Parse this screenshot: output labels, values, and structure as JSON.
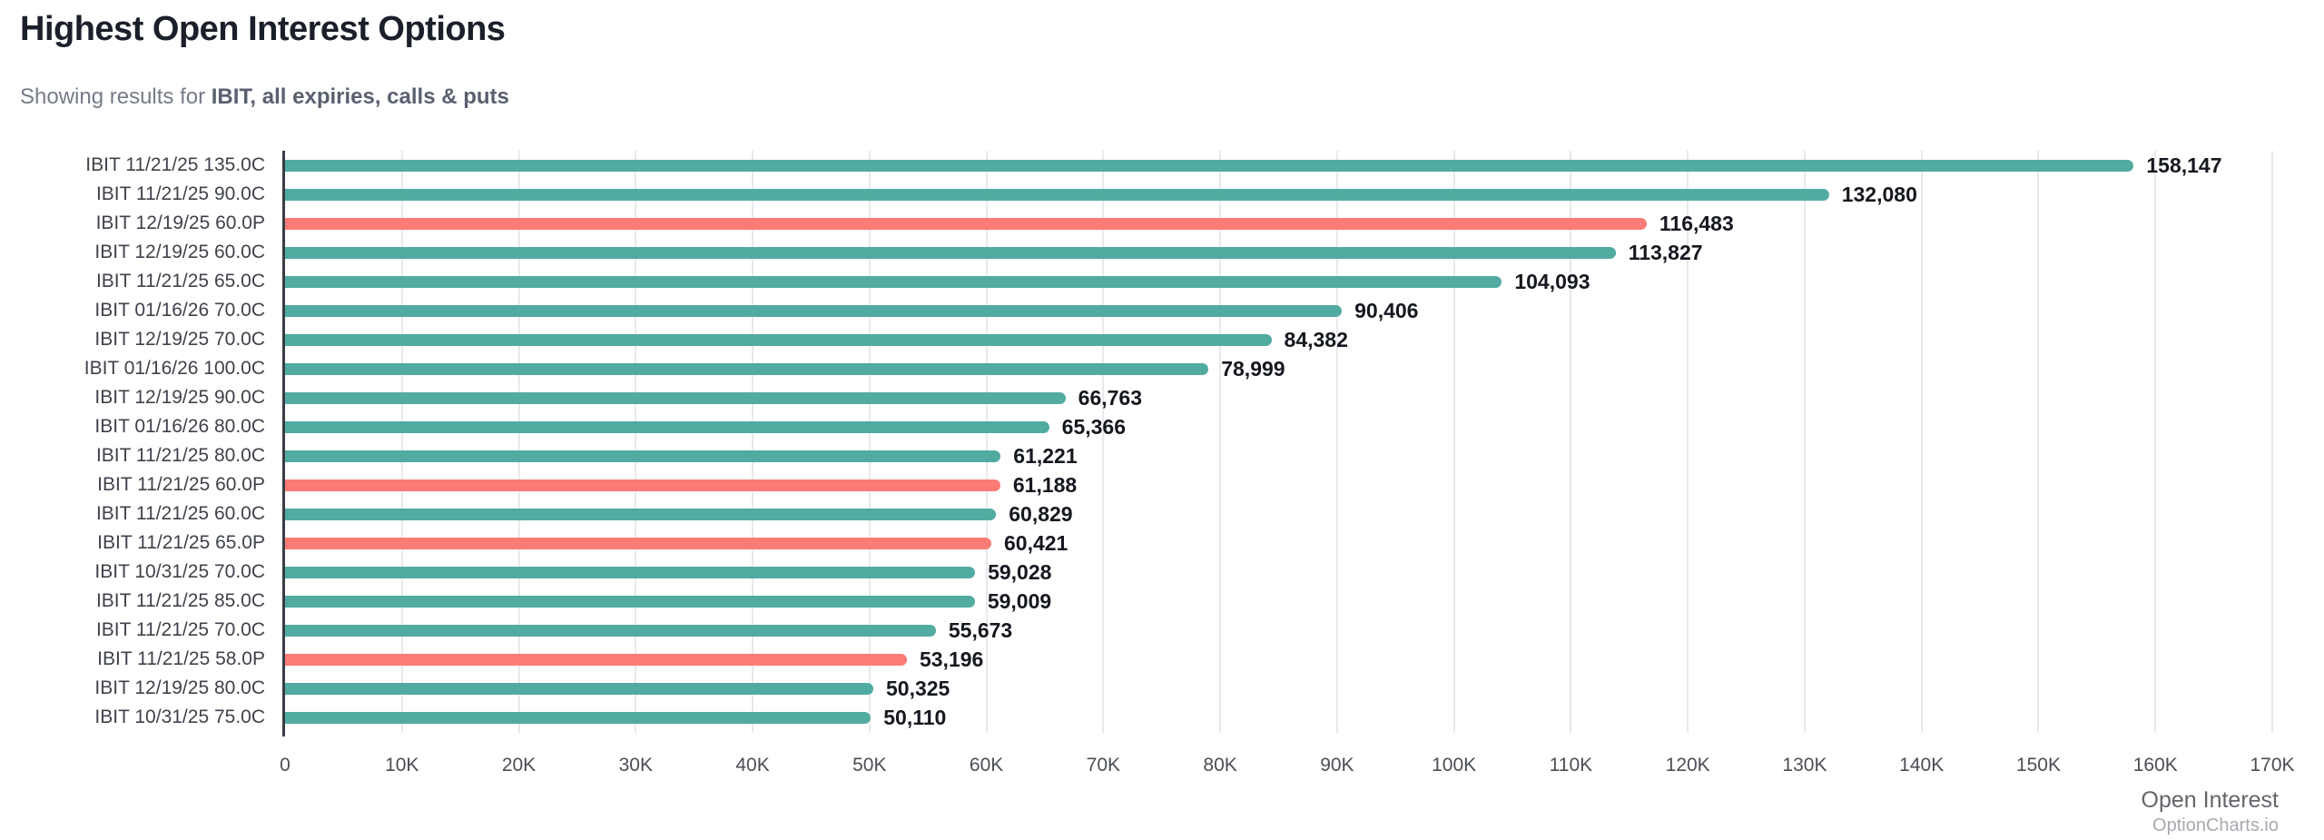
{
  "page": {
    "title": "Highest Open Interest Options",
    "subtitle_prefix": "Showing results for ",
    "subtitle_bold": "IBIT, all expiries, calls & puts",
    "brand": "OptionCharts.io"
  },
  "colors": {
    "call_bar": "#52ABA1",
    "put_bar": "#FB7B76",
    "grid": "#E9E9EC",
    "axis": "#3A3D44",
    "value_text": "#15181F",
    "row_label_text": "#3F424B"
  },
  "chart_data": {
    "type": "bar",
    "orientation": "horizontal",
    "title": "Highest Open Interest Options",
    "xlabel": "Open Interest",
    "ylabel": "",
    "xlim": [
      0,
      170000
    ],
    "x_tick_step": 10000,
    "x_tick_labels": [
      "0",
      "10K",
      "20K",
      "30K",
      "40K",
      "50K",
      "60K",
      "70K",
      "80K",
      "90K",
      "100K",
      "110K",
      "120K",
      "130K",
      "140K",
      "150K",
      "160K",
      "170K"
    ],
    "grid": true,
    "legend_position": "none",
    "bars": [
      {
        "label": "IBIT 11/21/25 135.0C",
        "value": 158147,
        "value_label": "158,147",
        "type": "call"
      },
      {
        "label": "IBIT 11/21/25 90.0C",
        "value": 132080,
        "value_label": "132,080",
        "type": "call"
      },
      {
        "label": "IBIT 12/19/25 60.0P",
        "value": 116483,
        "value_label": "116,483",
        "type": "put"
      },
      {
        "label": "IBIT 12/19/25 60.0C",
        "value": 113827,
        "value_label": "113,827",
        "type": "call"
      },
      {
        "label": "IBIT 11/21/25 65.0C",
        "value": 104093,
        "value_label": "104,093",
        "type": "call"
      },
      {
        "label": "IBIT 01/16/26 70.0C",
        "value": 90406,
        "value_label": "90,406",
        "type": "call"
      },
      {
        "label": "IBIT 12/19/25 70.0C",
        "value": 84382,
        "value_label": "84,382",
        "type": "call"
      },
      {
        "label": "IBIT 01/16/26 100.0C",
        "value": 78999,
        "value_label": "78,999",
        "type": "call"
      },
      {
        "label": "IBIT 12/19/25 90.0C",
        "value": 66763,
        "value_label": "66,763",
        "type": "call"
      },
      {
        "label": "IBIT 01/16/26 80.0C",
        "value": 65366,
        "value_label": "65,366",
        "type": "call"
      },
      {
        "label": "IBIT 11/21/25 80.0C",
        "value": 61221,
        "value_label": "61,221",
        "type": "call"
      },
      {
        "label": "IBIT 11/21/25 60.0P",
        "value": 61188,
        "value_label": "61,188",
        "type": "put"
      },
      {
        "label": "IBIT 11/21/25 60.0C",
        "value": 60829,
        "value_label": "60,829",
        "type": "call"
      },
      {
        "label": "IBIT 11/21/25 65.0P",
        "value": 60421,
        "value_label": "60,421",
        "type": "put"
      },
      {
        "label": "IBIT 10/31/25 70.0C",
        "value": 59028,
        "value_label": "59,028",
        "type": "call"
      },
      {
        "label": "IBIT 11/21/25 85.0C",
        "value": 59009,
        "value_label": "59,009",
        "type": "call"
      },
      {
        "label": "IBIT 11/21/25 70.0C",
        "value": 55673,
        "value_label": "55,673",
        "type": "call"
      },
      {
        "label": "IBIT 11/21/25 58.0P",
        "value": 53196,
        "value_label": "53,196",
        "type": "put"
      },
      {
        "label": "IBIT 12/19/25 80.0C",
        "value": 50325,
        "value_label": "50,325",
        "type": "call"
      },
      {
        "label": "IBIT 10/31/25 75.0C",
        "value": 50110,
        "value_label": "50,110",
        "type": "call"
      }
    ]
  }
}
